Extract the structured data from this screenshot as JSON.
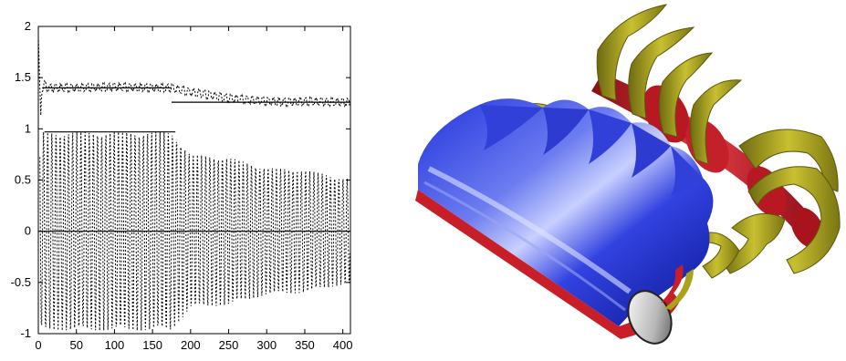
{
  "chart_data": {
    "type": "line",
    "title": "",
    "xlabel": "",
    "ylabel": "",
    "xlim": [
      0,
      410
    ],
    "ylim": [
      -1,
      2
    ],
    "grid": false,
    "x_ticks": [
      "0",
      "50",
      "100",
      "150",
      "200",
      "250",
      "300",
      "350",
      "400"
    ],
    "y_ticks": [
      "-1",
      "-0.5",
      "0",
      "0.5",
      "1",
      "1.5",
      "2"
    ],
    "series": [
      {
        "style": "dotted oscillating (upper)",
        "x": [
          0,
          5,
          15,
          50,
          100,
          150,
          175,
          200,
          250,
          300,
          330,
          350,
          400,
          410
        ],
        "y": [
          0.95,
          1.42,
          1.4,
          1.4,
          1.41,
          1.4,
          1.4,
          1.36,
          1.3,
          1.27,
          1.26,
          1.27,
          1.26,
          1.26
        ]
      },
      {
        "style": "dotted oscillating (lower)",
        "x": [
          0,
          10,
          50,
          100,
          150,
          175,
          200,
          250,
          300,
          350,
          400
        ],
        "y_amplitude": [
          0.97,
          0.97,
          0.97,
          0.97,
          0.97,
          0.97,
          0.75,
          0.72,
          0.62,
          0.6,
          0.52
        ]
      },
      {
        "style": "solid reference",
        "segments": [
          {
            "x": [
              5,
              175
            ],
            "y": 1.4
          },
          {
            "x": [
              175,
              410
            ],
            "y": 1.26
          },
          {
            "x": [
              8,
              180
            ],
            "y": 0.97
          },
          {
            "x": [
              0,
              410
            ],
            "y": 0.0
          }
        ]
      }
    ]
  },
  "render": {
    "blue_color": "#1a2fd0",
    "red_color": "#c81e28",
    "yellow_color": "#a8a21c"
  }
}
